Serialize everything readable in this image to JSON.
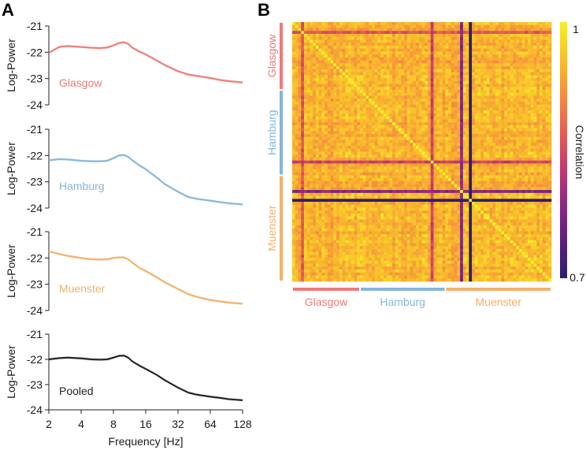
{
  "panel_labels": {
    "a": "A",
    "b": "B"
  },
  "colors": {
    "glasgow": "#ef7b77",
    "hamburg": "#86b6da",
    "muenster": "#f4b06a",
    "pooled": "#222222",
    "cmap": [
      "#2d1e6b",
      "#5a1f7e",
      "#8b2a80",
      "#c23a6f",
      "#e45f55",
      "#f48c3e",
      "#f9bf2b",
      "#f6ef2b"
    ]
  },
  "chart_data": [
    {
      "type": "line",
      "panel": "A",
      "title": "",
      "xlabel": "Frequency [Hz]",
      "ylabel": "Log-Power",
      "x_scale": "log2",
      "xlim": [
        2,
        128
      ],
      "ylim": [
        -24,
        -21
      ],
      "xticks": [
        "2",
        "4",
        "8",
        "16",
        "32",
        "64",
        "128"
      ],
      "yticks": [
        "-21",
        "-22",
        "-23",
        "-24"
      ],
      "x": [
        2,
        2.5,
        3,
        4,
        5,
        6,
        7,
        8,
        9,
        10,
        11,
        12,
        14,
        16,
        20,
        24,
        32,
        40,
        48,
        64,
        80,
        96,
        128
      ],
      "series": [
        {
          "name": "Glasgow",
          "color_key": "glasgow",
          "values": [
            -22.02,
            -21.8,
            -21.76,
            -21.8,
            -21.83,
            -21.84,
            -21.82,
            -21.74,
            -21.65,
            -21.62,
            -21.68,
            -21.82,
            -21.98,
            -22.08,
            -22.3,
            -22.48,
            -22.72,
            -22.85,
            -22.9,
            -22.98,
            -23.06,
            -23.1,
            -23.15
          ]
        },
        {
          "name": "Hamburg",
          "color_key": "hamburg",
          "values": [
            -22.18,
            -22.14,
            -22.15,
            -22.2,
            -22.22,
            -22.22,
            -22.2,
            -22.1,
            -22.0,
            -21.98,
            -22.05,
            -22.18,
            -22.38,
            -22.52,
            -22.82,
            -23.08,
            -23.38,
            -23.58,
            -23.65,
            -23.72,
            -23.78,
            -23.82,
            -23.86
          ]
        },
        {
          "name": "Muenster",
          "color_key": "muenster",
          "values": [
            -21.75,
            -21.85,
            -21.92,
            -22.0,
            -22.05,
            -22.06,
            -22.05,
            -22.0,
            -21.98,
            -21.98,
            -22.05,
            -22.18,
            -22.38,
            -22.5,
            -22.72,
            -22.92,
            -23.18,
            -23.38,
            -23.48,
            -23.6,
            -23.66,
            -23.7,
            -23.74
          ]
        },
        {
          "name": "Pooled",
          "color_key": "pooled",
          "values": [
            -22.0,
            -21.95,
            -21.93,
            -21.96,
            -22.0,
            -22.01,
            -22.0,
            -21.93,
            -21.86,
            -21.85,
            -21.93,
            -22.08,
            -22.25,
            -22.38,
            -22.6,
            -22.82,
            -23.12,
            -23.32,
            -23.4,
            -23.48,
            -23.53,
            -23.58,
            -23.62
          ]
        }
      ]
    },
    {
      "type": "heatmap",
      "panel": "B",
      "title": "",
      "colorbar_label": "Correlation",
      "clim": [
        0.7,
        1
      ],
      "colorbar_ticks": [
        "1",
        "0.7"
      ],
      "group_labels": [
        "Glasgow",
        "Hamburg",
        "Muenster"
      ],
      "group_color_keys": [
        "glasgow",
        "hamburg",
        "muenster"
      ],
      "group_sizes": [
        23,
        29,
        36
      ],
      "n_subjects": 88,
      "outlier_subjects": [
        {
          "index": 60,
          "value": 0.7
        },
        {
          "index": 57,
          "value": 0.8
        },
        {
          "index": 47,
          "value": 0.86
        },
        {
          "index": 3,
          "value": 0.88
        }
      ]
    }
  ]
}
